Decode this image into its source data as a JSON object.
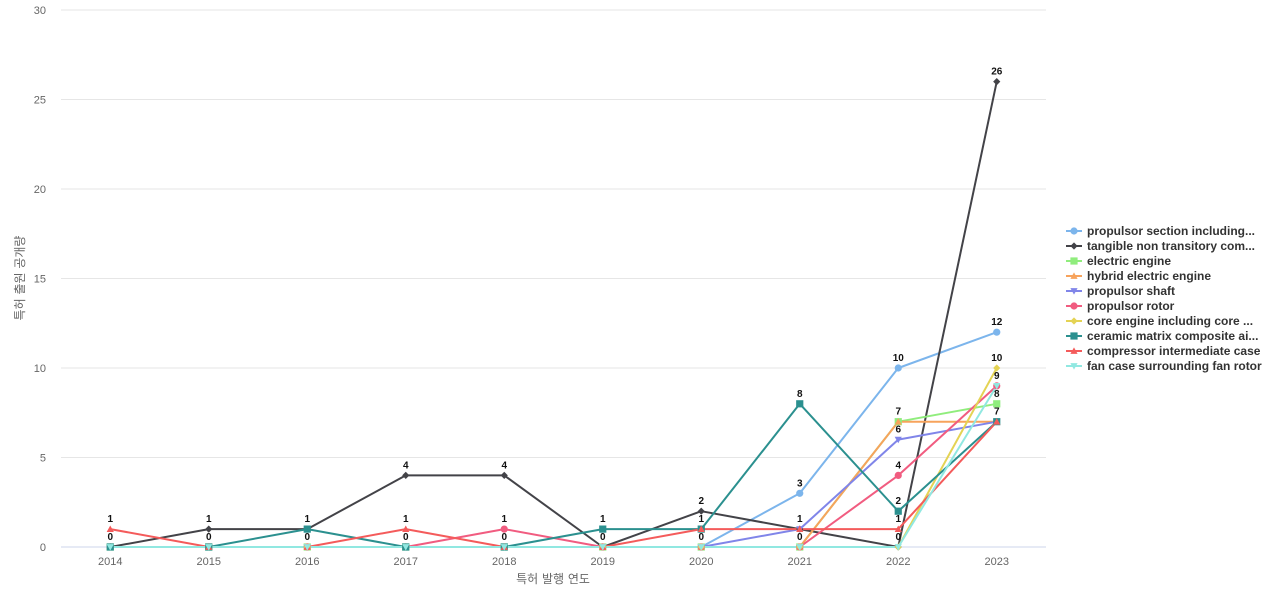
{
  "chart_data": {
    "type": "line",
    "xlabel": "특허 발행 연도",
    "ylabel": "특허 출원 공개량",
    "ylim": [
      0,
      30
    ],
    "yticks": [
      0,
      5,
      10,
      15,
      20,
      25,
      30
    ],
    "categories": [
      "2014",
      "2015",
      "2016",
      "2017",
      "2018",
      "2019",
      "2020",
      "2021",
      "2022",
      "2023"
    ],
    "grid": "horizontal",
    "legend_position": "right",
    "series": [
      {
        "name": "propulsor section including...",
        "color": "#7cb5ec",
        "marker": "circle",
        "values": [
          0,
          0,
          0,
          0,
          0,
          0,
          0,
          3,
          10,
          12
        ]
      },
      {
        "name": "tangible non transitory com...",
        "color": "#434348",
        "marker": "diamond",
        "values": [
          0,
          1,
          1,
          4,
          4,
          0,
          2,
          1,
          0,
          26
        ]
      },
      {
        "name": "electric engine",
        "color": "#90ed7d",
        "marker": "square",
        "values": [
          0,
          0,
          0,
          0,
          0,
          0,
          0,
          0,
          7,
          8
        ]
      },
      {
        "name": "hybrid electric engine",
        "color": "#f7a35c",
        "marker": "triangle",
        "values": [
          0,
          0,
          0,
          0,
          0,
          0,
          0,
          0,
          7,
          7
        ]
      },
      {
        "name": "propulsor shaft",
        "color": "#8085e9",
        "marker": "triangle-down",
        "values": [
          0,
          0,
          0,
          0,
          0,
          0,
          0,
          1,
          6,
          7
        ]
      },
      {
        "name": "propulsor rotor",
        "color": "#f15c80",
        "marker": "circle",
        "values": [
          0,
          0,
          0,
          0,
          1,
          0,
          0,
          0,
          4,
          9
        ]
      },
      {
        "name": "core engine including core ...",
        "color": "#e4d354",
        "marker": "diamond",
        "values": [
          0,
          0,
          0,
          0,
          0,
          0,
          0,
          0,
          0,
          10
        ]
      },
      {
        "name": "ceramic matrix composite ai...",
        "color": "#2b908f",
        "marker": "square",
        "values": [
          0,
          0,
          1,
          0,
          0,
          1,
          1,
          8,
          2,
          7
        ]
      },
      {
        "name": "compressor intermediate case",
        "color": "#f45b5b",
        "marker": "triangle",
        "values": [
          1,
          0,
          0,
          1,
          0,
          0,
          1,
          1,
          1,
          7
        ]
      },
      {
        "name": "fan case surrounding fan rotor",
        "color": "#91e8e1",
        "marker": "triangle-down",
        "values": [
          0,
          0,
          0,
          0,
          0,
          0,
          0,
          0,
          0,
          9
        ]
      }
    ],
    "data_labels": [
      {
        "text": "1",
        "series": 8,
        "index": 0
      },
      {
        "text": "0",
        "series": 1,
        "index": 0
      },
      {
        "text": "1",
        "series": 1,
        "index": 1
      },
      {
        "text": "0",
        "series": 8,
        "index": 1
      },
      {
        "text": "1",
        "series": 7,
        "index": 2
      },
      {
        "text": "0",
        "series": 8,
        "index": 2
      },
      {
        "text": "4",
        "series": 1,
        "index": 3
      },
      {
        "text": "1",
        "series": 8,
        "index": 3
      },
      {
        "text": "0",
        "series": 7,
        "index": 3
      },
      {
        "text": "4",
        "series": 1,
        "index": 4
      },
      {
        "text": "1",
        "series": 5,
        "index": 4
      },
      {
        "text": "0",
        "series": 7,
        "index": 4
      },
      {
        "text": "1",
        "series": 7,
        "index": 5
      },
      {
        "text": "0",
        "series": 1,
        "index": 5
      },
      {
        "text": "2",
        "series": 1,
        "index": 6
      },
      {
        "text": "1",
        "series": 7,
        "index": 6
      },
      {
        "text": "0",
        "series": 4,
        "index": 6
      },
      {
        "text": "8",
        "series": 7,
        "index": 7
      },
      {
        "text": "3",
        "series": 0,
        "index": 7
      },
      {
        "text": "1",
        "series": 4,
        "index": 7
      },
      {
        "text": "0",
        "series": 5,
        "index": 7
      },
      {
        "text": "10",
        "series": 0,
        "index": 8
      },
      {
        "text": "7",
        "series": 2,
        "index": 8
      },
      {
        "text": "6",
        "series": 4,
        "index": 8
      },
      {
        "text": "4",
        "series": 5,
        "index": 8
      },
      {
        "text": "2",
        "series": 7,
        "index": 8
      },
      {
        "text": "1",
        "series": 8,
        "index": 8
      },
      {
        "text": "0",
        "series": 1,
        "index": 8
      },
      {
        "text": "26",
        "series": 1,
        "index": 9
      },
      {
        "text": "12",
        "series": 0,
        "index": 9
      },
      {
        "text": "10",
        "series": 6,
        "index": 9
      },
      {
        "text": "9",
        "series": 5,
        "index": 9
      },
      {
        "text": "8",
        "series": 2,
        "index": 9
      },
      {
        "text": "7",
        "series": 7,
        "index": 9
      }
    ]
  }
}
